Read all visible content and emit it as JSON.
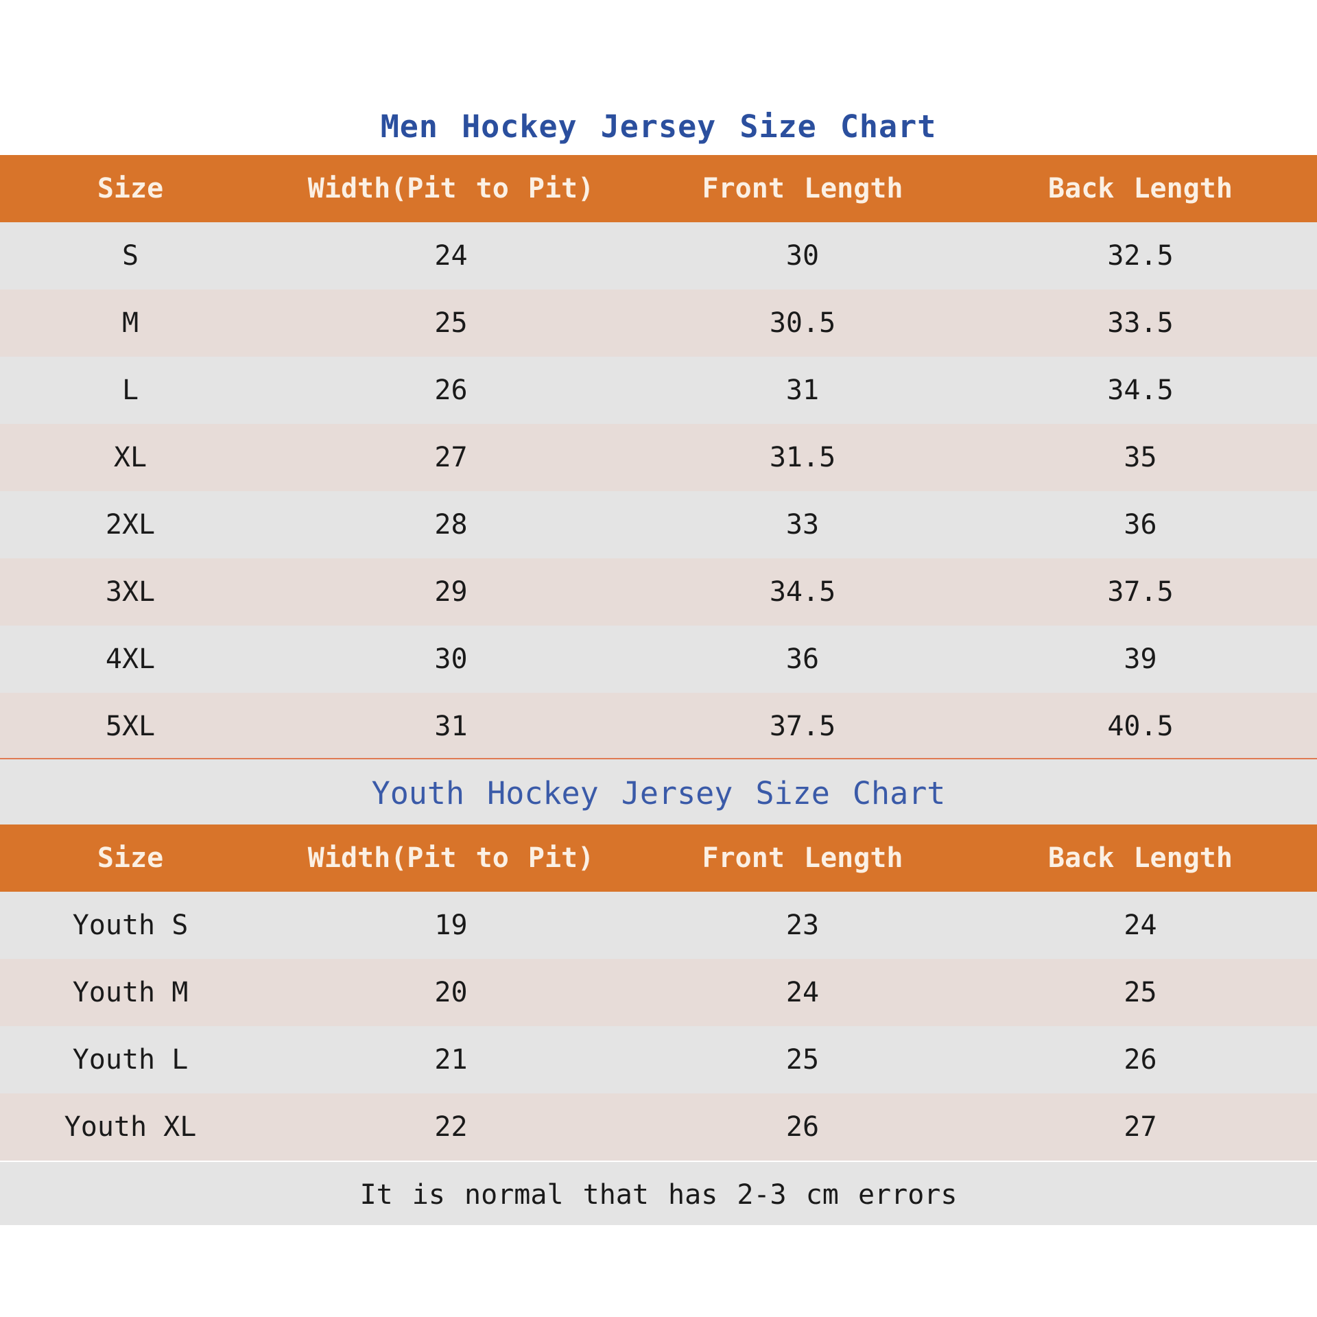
{
  "men_chart": {
    "title": "Men Hockey Jersey Size Chart",
    "columns": [
      "Size",
      "Width(Pit to Pit)",
      "Front Length",
      "Back Length"
    ],
    "rows": [
      [
        "S",
        "24",
        "30",
        "32.5"
      ],
      [
        "M",
        "25",
        "30.5",
        "33.5"
      ],
      [
        "L",
        "26",
        "31",
        "34.5"
      ],
      [
        "XL",
        "27",
        "31.5",
        "35"
      ],
      [
        "2XL",
        "28",
        "33",
        "36"
      ],
      [
        "3XL",
        "29",
        "34.5",
        "37.5"
      ],
      [
        "4XL",
        "30",
        "36",
        "39"
      ],
      [
        "5XL",
        "31",
        "37.5",
        "40.5"
      ]
    ]
  },
  "youth_chart": {
    "title": "Youth Hockey Jersey Size Chart",
    "columns": [
      "Size",
      "Width(Pit to Pit)",
      "Front Length",
      "Back Length"
    ],
    "rows": [
      [
        "Youth S",
        "19",
        "23",
        "24"
      ],
      [
        "Youth M",
        "20",
        "24",
        "25"
      ],
      [
        "Youth L",
        "21",
        "25",
        "26"
      ],
      [
        "Youth XL",
        "22",
        "26",
        "27"
      ]
    ]
  },
  "note": "It is normal that has 2-3 cm errors",
  "colors": {
    "header_background": "#d8742a",
    "header_text": "#fbf0e4",
    "men_title": "#2b4f9e",
    "youth_title": "#3a5aa8",
    "row_gray": "#e4e4e4",
    "row_pink": "#e7dcd8"
  }
}
